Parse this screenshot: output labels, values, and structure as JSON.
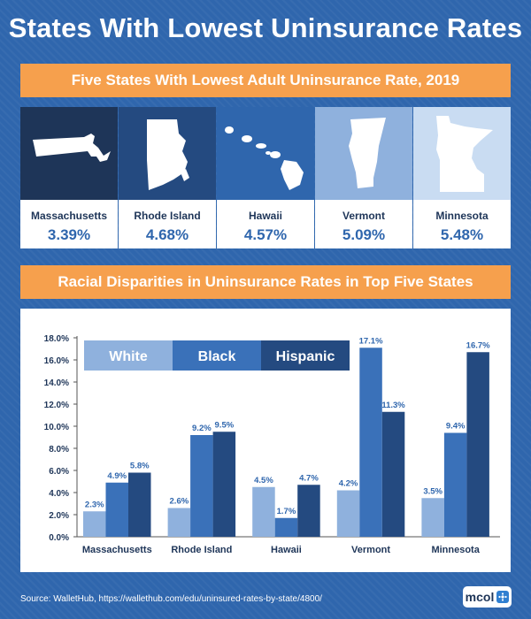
{
  "title": "States With Lowest Uninsurance Rates",
  "banner_top": "Five States With Lowest Adult Uninsurance Rate, 2019",
  "banner_bottom": "Racial Disparities in Uninsurance Rates in Top Five States",
  "states": [
    {
      "name": "Massachusetts",
      "rate": "3.39%",
      "map_color": "#1e3558"
    },
    {
      "name": "Rhode Island",
      "rate": "4.68%",
      "map_color": "#244a80"
    },
    {
      "name": "Hawaii",
      "rate": "4.57%",
      "map_color": "#2f66ad"
    },
    {
      "name": "Vermont",
      "rate": "5.09%",
      "map_color": "#8fb1dd"
    },
    {
      "name": "Minnesota",
      "rate": "5.48%",
      "map_color": "#c9dcf2"
    }
  ],
  "chart_data": {
    "type": "bar",
    "categories": [
      "Massachusetts",
      "Rhode Island",
      "Hawaii",
      "Vermont",
      "Minnesota"
    ],
    "series": [
      {
        "name": "White",
        "values": [
          2.3,
          2.6,
          4.5,
          4.2,
          3.5
        ],
        "labels": [
          "2.3%",
          "2.6%",
          "4.5%",
          "4.2%",
          "3.5%"
        ],
        "color": "#8fb1dd"
      },
      {
        "name": "Black",
        "values": [
          4.9,
          9.2,
          1.7,
          17.1,
          9.4
        ],
        "labels": [
          "4.9%",
          "9.2%",
          "1.7%",
          "17.1%",
          "9.4%"
        ],
        "color": "#3a71b9"
      },
      {
        "name": "Hispanic",
        "values": [
          5.8,
          9.5,
          4.7,
          11.3,
          16.7
        ],
        "labels": [
          "5.8%",
          "9.5%",
          "4.7%",
          "11.3%",
          "16.7%"
        ],
        "color": "#244a80"
      }
    ],
    "ylim": [
      0,
      18
    ],
    "yticks": [
      "0.0%",
      "2.0%",
      "4.0%",
      "6.0%",
      "8.0%",
      "10.0%",
      "12.0%",
      "14.0%",
      "16.0%",
      "18.0%"
    ],
    "legend_position": "top-left, inside plot",
    "grid": false
  },
  "source": "Source:  WalletHub, https://wallethub.com/edu/uninsured-rates-by-state/4800/",
  "logo": {
    "text": "mcol"
  }
}
